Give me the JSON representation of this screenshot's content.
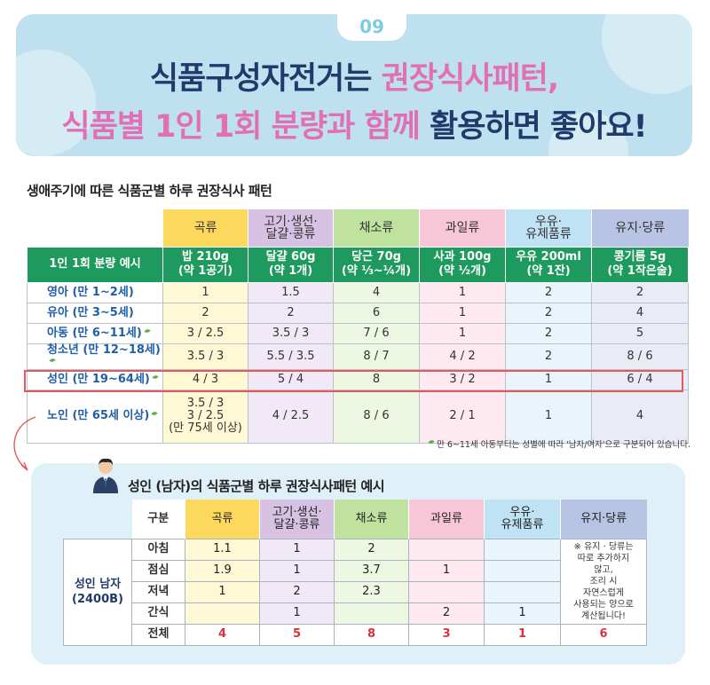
{
  "banner": {
    "number": "09",
    "line1_dark": "식품구성자전거는 ",
    "line1_pink": "권장식사패턴,",
    "line2_pink": "식품별 1인 1회 분량과  함께 ",
    "line2_dark": "활용하면 좋아요!"
  },
  "colors": {
    "banner_bg": "#bfe1ef",
    "dark_navy": "#1f3a6b",
    "pink": "#e070b3",
    "green_row": "#1f9a5e",
    "highlight_red": "#e45a5a"
  },
  "table1": {
    "title": "생애주기에 따른 식품군별 하루 권장식사 패턴",
    "headers": [
      "곡류",
      "고기·생선·\n달걀·콩류",
      "채소류",
      "과일류",
      "우유·\n유제품류",
      "유지·당류"
    ],
    "example_label": "1인 1회 분량 예시",
    "examples": [
      "밥 210g\n(약 1공기)",
      "달걀 60g\n(약 1개)",
      "당근 70g\n(약 ⅓~¼개)",
      "사과 100g\n(약 ½개)",
      "우유 200ml\n(약 1잔)",
      "콩기름 5g\n(약 1작은술)"
    ],
    "rows": [
      {
        "label": "영아 (만 1~2세)",
        "leaf": false,
        "values": [
          "1",
          "1.5",
          "4",
          "1",
          "2",
          "2"
        ]
      },
      {
        "label": "유아 (만 3~5세)",
        "leaf": false,
        "values": [
          "2",
          "2",
          "6",
          "1",
          "2",
          "4"
        ]
      },
      {
        "label": "아동 (만 6~11세)",
        "leaf": true,
        "values": [
          "3 / 2.5",
          "3.5 / 3",
          "7 / 6",
          "1",
          "2",
          "5"
        ]
      },
      {
        "label": "청소년 (만 12~18세)",
        "leaf": true,
        "values": [
          "3.5 / 3",
          "5.5 / 3.5",
          "8 / 7",
          "4 / 2",
          "2",
          "8 / 6"
        ]
      },
      {
        "label": "성인 (만 19~64세)",
        "leaf": true,
        "values": [
          "4 / 3",
          "5 / 4",
          "8",
          "3 / 2",
          "1",
          "6 / 4"
        ]
      },
      {
        "label": "노인 (만 65세 이상)",
        "leaf": true,
        "values": [
          "3.5 / 3\n3 / 2.5\n(만 75세 이상)",
          "4 / 2.5",
          "8 / 6",
          "2 / 1",
          "1",
          "4"
        ]
      }
    ],
    "note": "만 6~11세 아동부터는 성별에 따라 '남자/여자'으로 구분되어 있습니다."
  },
  "table2": {
    "title": "성인 (남자)의 식품군별 하루 권장식사패턴 예시",
    "gubun": "구분",
    "headers": [
      "곡류",
      "고기·생선·\n달걀·콩류",
      "채소류",
      "과일류",
      "우유·\n유제품류",
      "유지·당류"
    ],
    "group_label": "성인 남자\n(2400B)",
    "meals": [
      {
        "label": "아침",
        "values": [
          "1.1",
          "1",
          "2",
          "",
          ""
        ]
      },
      {
        "label": "점심",
        "values": [
          "1.9",
          "1",
          "3.7",
          "1",
          ""
        ]
      },
      {
        "label": "저녁",
        "values": [
          "1",
          "2",
          "2.3",
          "",
          ""
        ]
      },
      {
        "label": "간식",
        "values": [
          "",
          "1",
          "",
          "2",
          "1"
        ]
      }
    ],
    "fat_note": "※ 유지 · 당류는\n따로 추가하지\n않고,\n조리 시\n자연스럽게\n사용되는 양으로\n계산됩니다!",
    "total_label": "전체",
    "totals": [
      "4",
      "5",
      "8",
      "3",
      "1",
      "6"
    ]
  }
}
